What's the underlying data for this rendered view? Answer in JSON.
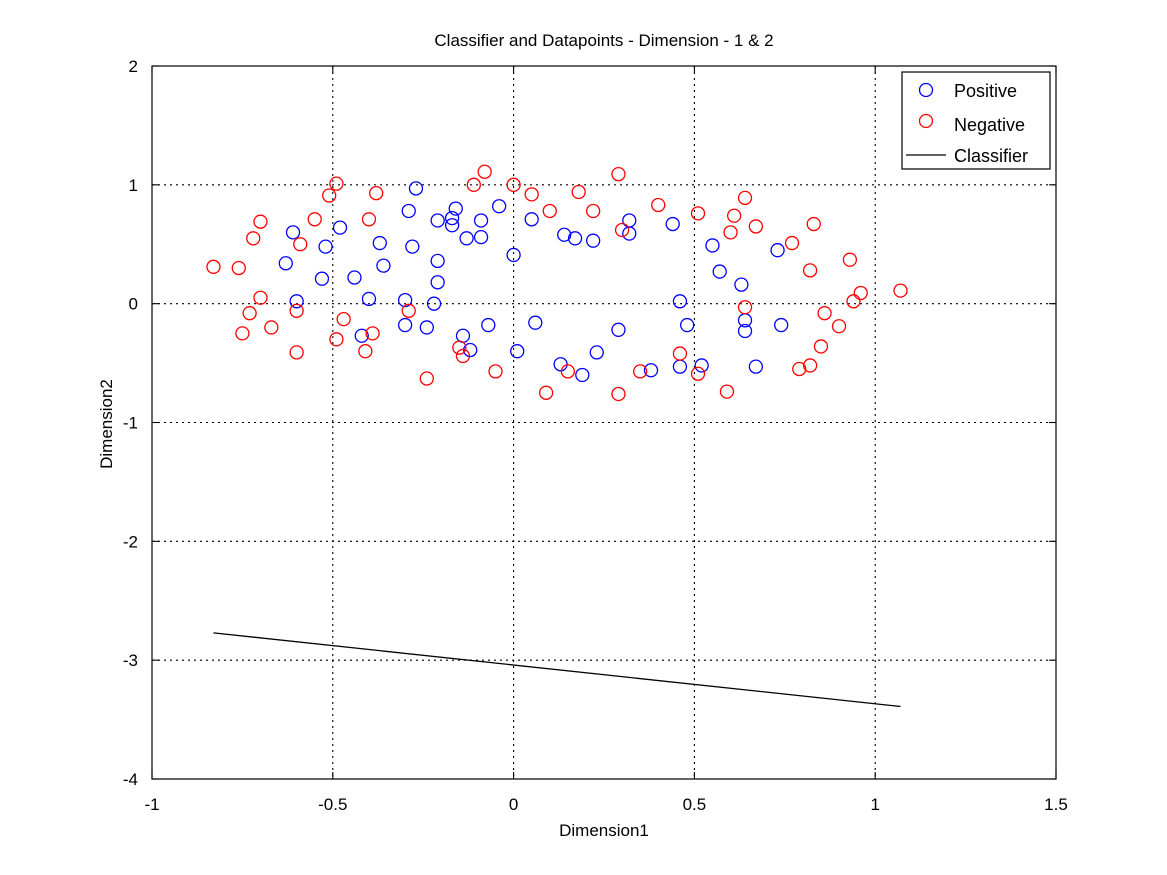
{
  "chart_data": {
    "type": "scatter",
    "title": "Classifier and Datapoints - Dimension - 1 & 2",
    "xlabel": "Dimension1",
    "ylabel": "Dimension2",
    "xlim": [
      -1,
      1.5
    ],
    "ylim": [
      -4,
      2
    ],
    "xticks": [
      -1,
      -0.5,
      0,
      0.5,
      1,
      1.5
    ],
    "xtick_labels": [
      "-1",
      "-0.5",
      "0",
      "0.5",
      "1",
      "1.5"
    ],
    "yticks": [
      -4,
      -3,
      -2,
      -1,
      0,
      1,
      2
    ],
    "ytick_labels": [
      "-4",
      "-3",
      "-2",
      "-1",
      "0",
      "1",
      "2"
    ],
    "grid": true,
    "legend_position": "top-right",
    "colors": {
      "positive": "#0000ff",
      "negative": "#ff0000",
      "classifier": "#000000"
    },
    "series": [
      {
        "name": "Positive",
        "marker": "circle",
        "color": "#0000ff",
        "points": [
          [
            -0.27,
            0.97
          ],
          [
            -0.04,
            0.82
          ],
          [
            -0.16,
            0.8
          ],
          [
            -0.29,
            0.78
          ],
          [
            -0.17,
            0.72
          ],
          [
            -0.21,
            0.7
          ],
          [
            -0.09,
            0.7
          ],
          [
            0.05,
            0.71
          ],
          [
            0.32,
            0.7
          ],
          [
            0.44,
            0.67
          ],
          [
            -0.17,
            0.66
          ],
          [
            -0.48,
            0.64
          ],
          [
            -0.61,
            0.6
          ],
          [
            0.14,
            0.58
          ],
          [
            0.32,
            0.59
          ],
          [
            -0.13,
            0.55
          ],
          [
            -0.09,
            0.56
          ],
          [
            0.17,
            0.55
          ],
          [
            0.22,
            0.53
          ],
          [
            -0.37,
            0.51
          ],
          [
            0.55,
            0.49
          ],
          [
            -0.28,
            0.48
          ],
          [
            -0.52,
            0.48
          ],
          [
            0.73,
            0.45
          ],
          [
            0.0,
            0.41
          ],
          [
            -0.21,
            0.36
          ],
          [
            -0.63,
            0.34
          ],
          [
            -0.36,
            0.32
          ],
          [
            0.57,
            0.27
          ],
          [
            -0.44,
            0.22
          ],
          [
            -0.53,
            0.21
          ],
          [
            -0.21,
            0.18
          ],
          [
            0.63,
            0.16
          ],
          [
            -0.4,
            0.04
          ],
          [
            -0.3,
            0.03
          ],
          [
            -0.6,
            0.02
          ],
          [
            0.46,
            0.02
          ],
          [
            -0.22,
            0.0
          ],
          [
            0.64,
            -0.14
          ],
          [
            0.06,
            -0.16
          ],
          [
            0.74,
            -0.18
          ],
          [
            -0.3,
            -0.18
          ],
          [
            -0.07,
            -0.18
          ],
          [
            0.48,
            -0.18
          ],
          [
            -0.24,
            -0.2
          ],
          [
            0.29,
            -0.22
          ],
          [
            0.64,
            -0.23
          ],
          [
            -0.42,
            -0.27
          ],
          [
            -0.14,
            -0.27
          ],
          [
            -0.12,
            -0.39
          ],
          [
            0.01,
            -0.4
          ],
          [
            0.23,
            -0.41
          ],
          [
            0.13,
            -0.51
          ],
          [
            0.52,
            -0.52
          ],
          [
            0.46,
            -0.53
          ],
          [
            0.67,
            -0.53
          ],
          [
            0.38,
            -0.56
          ],
          [
            0.19,
            -0.6
          ]
        ]
      },
      {
        "name": "Negative",
        "marker": "circle",
        "color": "#ff0000",
        "points": [
          [
            -0.08,
            1.11
          ],
          [
            0.29,
            1.09
          ],
          [
            -0.49,
            1.01
          ],
          [
            -0.11,
            1.0
          ],
          [
            0.0,
            1.0
          ],
          [
            0.18,
            0.94
          ],
          [
            -0.38,
            0.93
          ],
          [
            0.05,
            0.92
          ],
          [
            -0.51,
            0.91
          ],
          [
            0.64,
            0.89
          ],
          [
            0.4,
            0.83
          ],
          [
            0.1,
            0.78
          ],
          [
            0.22,
            0.78
          ],
          [
            0.51,
            0.76
          ],
          [
            0.61,
            0.74
          ],
          [
            -0.4,
            0.71
          ],
          [
            -0.55,
            0.71
          ],
          [
            -0.7,
            0.69
          ],
          [
            0.83,
            0.67
          ],
          [
            0.67,
            0.65
          ],
          [
            0.3,
            0.62
          ],
          [
            0.6,
            0.6
          ],
          [
            -0.72,
            0.55
          ],
          [
            0.77,
            0.51
          ],
          [
            -0.59,
            0.5
          ],
          [
            0.93,
            0.37
          ],
          [
            -0.83,
            0.31
          ],
          [
            -0.76,
            0.3
          ],
          [
            0.82,
            0.28
          ],
          [
            0.96,
            0.09
          ],
          [
            1.07,
            0.11
          ],
          [
            -0.7,
            0.05
          ],
          [
            0.94,
            0.02
          ],
          [
            0.64,
            -0.03
          ],
          [
            -0.6,
            -0.06
          ],
          [
            -0.29,
            -0.06
          ],
          [
            -0.73,
            -0.08
          ],
          [
            0.86,
            -0.08
          ],
          [
            -0.47,
            -0.13
          ],
          [
            -0.67,
            -0.2
          ],
          [
            0.9,
            -0.19
          ],
          [
            -0.75,
            -0.25
          ],
          [
            -0.39,
            -0.25
          ],
          [
            -0.49,
            -0.3
          ],
          [
            -0.15,
            -0.37
          ],
          [
            0.85,
            -0.36
          ],
          [
            -0.41,
            -0.4
          ],
          [
            -0.6,
            -0.41
          ],
          [
            0.46,
            -0.42
          ],
          [
            -0.14,
            -0.44
          ],
          [
            0.82,
            -0.52
          ],
          [
            0.79,
            -0.55
          ],
          [
            -0.05,
            -0.57
          ],
          [
            0.15,
            -0.57
          ],
          [
            0.35,
            -0.57
          ],
          [
            0.51,
            -0.59
          ],
          [
            -0.24,
            -0.63
          ],
          [
            0.59,
            -0.74
          ],
          [
            0.09,
            -0.75
          ],
          [
            0.29,
            -0.76
          ]
        ]
      },
      {
        "name": "Classifier",
        "type": "line",
        "color": "#000000",
        "points": [
          [
            -0.83,
            -2.77
          ],
          [
            1.07,
            -3.39
          ]
        ]
      }
    ]
  }
}
